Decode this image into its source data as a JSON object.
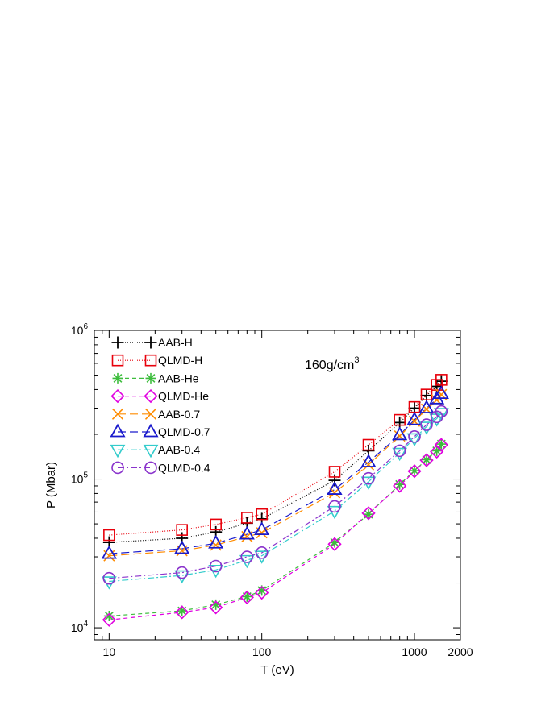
{
  "chart_data": {
    "type": "line",
    "xlabel": "T (eV)",
    "ylabel": "P (Mbar)",
    "xscale": "log",
    "yscale": "log",
    "xlim": [
      8,
      2000
    ],
    "ylim": [
      8300,
      1000000
    ],
    "x_ticks": [
      {
        "value": 10,
        "label": "10"
      },
      {
        "value": 100,
        "label": "100"
      },
      {
        "value": 1000,
        "label": "1000"
      },
      {
        "value": 2000,
        "label": "2000"
      }
    ],
    "y_ticks": [
      {
        "value": 10000,
        "base": "10",
        "exp": "4"
      },
      {
        "value": 100000,
        "base": "10",
        "exp": "5"
      },
      {
        "value": 1000000,
        "base": "10",
        "exp": "6"
      }
    ],
    "annotation": {
      "text": "160g/cm",
      "sup": "3"
    },
    "legend_position": "top-left",
    "x": [
      10,
      30,
      50,
      80,
      100,
      300,
      500,
      800,
      1000,
      1200,
      1400,
      1500
    ],
    "series": [
      {
        "name": "AAB-H",
        "color": "#000000",
        "marker": "plus",
        "dash": "1,2",
        "values": [
          37500,
          40000,
          44000,
          50500,
          54000,
          98000,
          155000,
          240000,
          300000,
          365000,
          420000,
          455000
        ]
      },
      {
        "name": "QLMD-H",
        "color": "#e8000b",
        "marker": "square",
        "dash": "1,2",
        "values": [
          42000,
          45500,
          49500,
          55000,
          58000,
          112000,
          170000,
          250000,
          305000,
          370000,
          430000,
          465000
        ]
      },
      {
        "name": "AAB-He",
        "color": "#3dbd3d",
        "marker": "star",
        "dash": "5,4",
        "values": [
          12000,
          13000,
          14300,
          16200,
          17800,
          37500,
          58000,
          92000,
          114000,
          135000,
          155000,
          172000
        ]
      },
      {
        "name": "QLMD-He",
        "color": "#e000e0",
        "marker": "diamond",
        "dash": "5,4",
        "values": [
          11300,
          12700,
          13700,
          16000,
          17200,
          36500,
          59000,
          90000,
          113000,
          134000,
          153000,
          170000
        ]
      },
      {
        "name": "AAB-0.7",
        "color": "#ff8c00",
        "marker": "cross",
        "dash": "10,5",
        "values": [
          30500,
          33000,
          36000,
          41000,
          43500,
          81000,
          125000,
          195000,
          245000,
          295000,
          340000,
          370000
        ]
      },
      {
        "name": "QLMD-0.7",
        "color": "#1a1acc",
        "marker": "triangle-up",
        "dash": "10,5",
        "values": [
          31500,
          34000,
          37000,
          42500,
          45500,
          85000,
          130000,
          198000,
          250000,
          300000,
          345000,
          375000
        ]
      },
      {
        "name": "AAB-0.4",
        "color": "#33cccc",
        "marker": "triangle-down",
        "dash": "8,3,2,3",
        "values": [
          20500,
          22500,
          24500,
          28500,
          30500,
          61000,
          96000,
          150000,
          188000,
          225000,
          255000,
          278000
        ]
      },
      {
        "name": "QLMD-0.4",
        "color": "#8a33cc",
        "marker": "circle",
        "dash": "8,3,2,3",
        "values": [
          21500,
          23500,
          26000,
          30000,
          32000,
          65500,
          101000,
          155000,
          193000,
          232000,
          262000,
          285000
        ]
      }
    ]
  }
}
